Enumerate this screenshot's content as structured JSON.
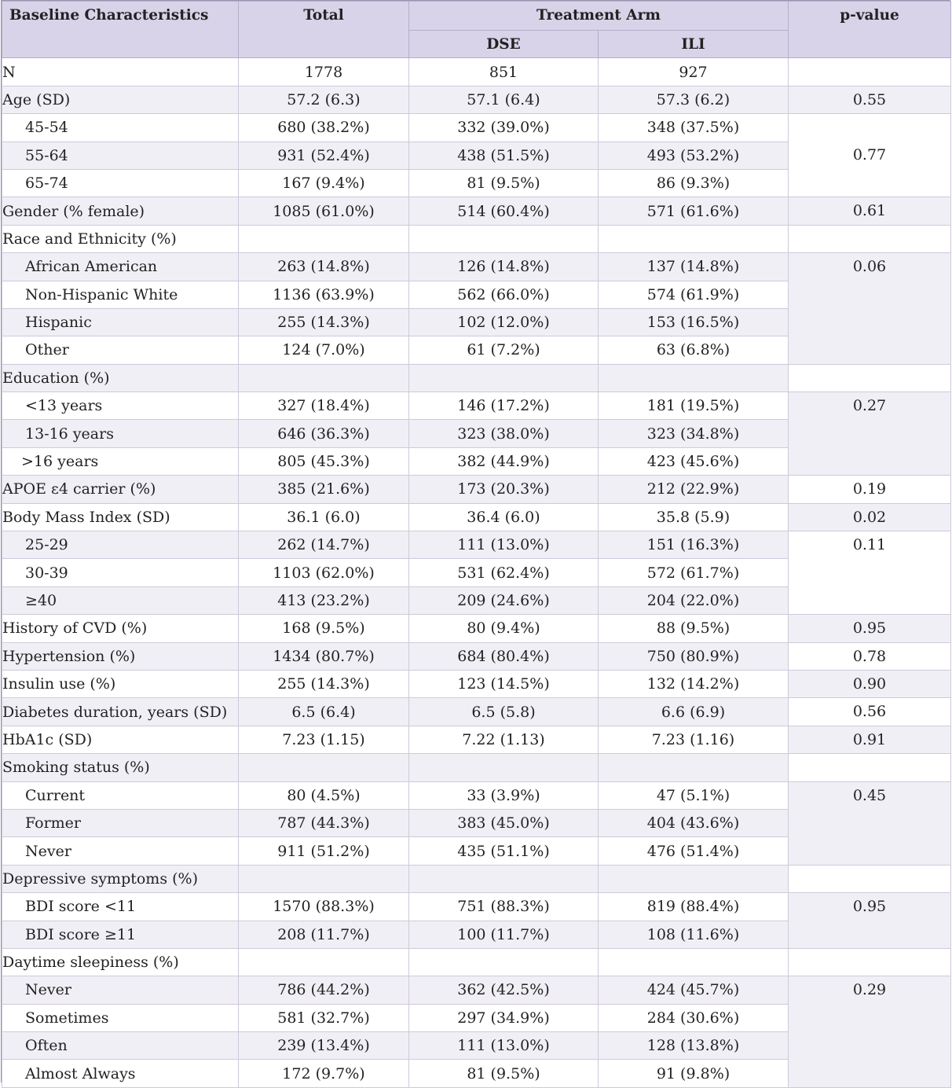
{
  "header": {
    "characteristics": "Baseline Characteristics",
    "total": "Total",
    "treatment_arm": "Treatment Arm",
    "dse": "DSE",
    "ili": "ILI",
    "pvalue": "p-value"
  },
  "rows": [
    {
      "label": "N",
      "total": "1778",
      "dse": "851",
      "ili": "927"
    },
    {
      "label": "Age (SD)",
      "total": "57.2 (6.3)",
      "dse": "57.1 (6.4)",
      "ili": "57.3 (6.2)",
      "p": "0.55"
    },
    {
      "label": "45-54",
      "total": "680 (38.2%)",
      "dse": "332 (39.0%)",
      "ili": "348 (37.5%)"
    },
    {
      "label": "55-64",
      "total": "931 (52.4%)",
      "dse": "438 (51.5%)",
      "ili": "493 (53.2%)",
      "p": "0.77"
    },
    {
      "label": "65-74",
      "total": "167 (9.4%)",
      "dse": "81 (9.5%)",
      "ili": "86 (9.3%)"
    },
    {
      "label": "Gender (% female)",
      "total": "1085 (61.0%)",
      "dse": "514 (60.4%)",
      "ili": "571 (61.6%)",
      "p": "0.61"
    },
    {
      "label": "Race and Ethnicity (%)"
    },
    {
      "label": "African American",
      "total": "263 (14.8%)",
      "dse": "126 (14.8%)",
      "ili": "137 (14.8%)",
      "p": "0.06"
    },
    {
      "label": "Non-Hispanic White",
      "total": "1136 (63.9%)",
      "dse": "562 (66.0%)",
      "ili": "574 (61.9%)"
    },
    {
      "label": "Hispanic",
      "total": "255 (14.3%)",
      "dse": "102 (12.0%)",
      "ili": "153 (16.5%)"
    },
    {
      "label": "Other",
      "total": "124 (7.0%)",
      "dse": "61 (7.2%)",
      "ili": "63 (6.8%)"
    },
    {
      "label": "Education (%)"
    },
    {
      "label": "<13 years",
      "total": "327 (18.4%)",
      "dse": "146 (17.2%)",
      "ili": "181 (19.5%)",
      "p": "0.27"
    },
    {
      "label": "13-16 years",
      "total": "646 (36.3%)",
      "dse": "323 (38.0%)",
      "ili": "323 (34.8%)"
    },
    {
      "label": ">16 years",
      "total": "805 (45.3%)",
      "dse": "382 (44.9%)",
      "ili": "423 (45.6%)"
    },
    {
      "label": "APOE ε4 carrier (%)",
      "total": "385 (21.6%)",
      "dse": "173 (20.3%)",
      "ili": "212 (22.9%)",
      "p": "0.19"
    },
    {
      "label": "Body Mass Index (SD)",
      "total": "36.1 (6.0)",
      "dse": "36.4 (6.0)",
      "ili": "35.8 (5.9)",
      "p": "0.02"
    },
    {
      "label": "25-29",
      "total": "262 (14.7%)",
      "dse": "111 (13.0%)",
      "ili": "151 (16.3%)",
      "p": "0.11"
    },
    {
      "label": "30-39",
      "total": "1103 (62.0%)",
      "dse": "531 (62.4%)",
      "ili": "572 (61.7%)"
    },
    {
      "label": "≥40",
      "total": "413 (23.2%)",
      "dse": "209 (24.6%)",
      "ili": "204 (22.0%)"
    },
    {
      "label": "History of CVD (%)",
      "total": "168 (9.5%)",
      "dse": "80 (9.4%)",
      "ili": "88 (9.5%)",
      "p": "0.95"
    },
    {
      "label": "Hypertension (%)",
      "total": "1434 (80.7%)",
      "dse": "684 (80.4%)",
      "ili": "750 (80.9%)",
      "p": "0.78"
    },
    {
      "label": "Insulin use (%)",
      "total": "255 (14.3%)",
      "dse": "123 (14.5%)",
      "ili": "132 (14.2%)",
      "p": "0.90"
    },
    {
      "label": "Diabetes duration, years (SD)",
      "total": "6.5 (6.4)",
      "dse": "6.5 (5.8)",
      "ili": "6.6 (6.9)",
      "p": "0.56"
    },
    {
      "label": "HbA1c (SD)",
      "total": "7.23 (1.15)",
      "dse": "7.22 (1.13)",
      "ili": "7.23 (1.16)",
      "p": "0.91"
    },
    {
      "label": "Smoking status (%)"
    },
    {
      "label": "Current",
      "total": "80 (4.5%)",
      "dse": "33 (3.9%)",
      "ili": "47 (5.1%)",
      "p": "0.45"
    },
    {
      "label": "Former",
      "total": "787 (44.3%)",
      "dse": "383 (45.0%)",
      "ili": "404 (43.6%)"
    },
    {
      "label": "Never",
      "total": "911 (51.2%)",
      "dse": "435 (51.1%)",
      "ili": "476 (51.4%)"
    },
    {
      "label": "Depressive symptoms (%)"
    },
    {
      "label": "BDI score <11",
      "total": "1570 (88.3%)",
      "dse": "751 (88.3%)",
      "ili": "819 (88.4%)",
      "p": "0.95"
    },
    {
      "label": "BDI score ≥11",
      "total": "208 (11.7%)",
      "dse": "100 (11.7%)",
      "ili": "108 (11.6%)"
    },
    {
      "label": "Daytime sleepiness (%)"
    },
    {
      "label": "Never",
      "total": "786 (44.2%)",
      "dse": "362 (42.5%)",
      "ili": "424 (45.7%)",
      "p": "0.29"
    },
    {
      "label": "Sometimes",
      "total": "581 (32.7%)",
      "dse": "297 (34.9%)",
      "ili": "284 (30.6%)"
    },
    {
      "label": "Often",
      "total": "239 (13.4%)",
      "dse": "111 (13.0%)",
      "ili": "128 (13.8%)"
    },
    {
      "label": "Almost Always",
      "total": "172 (9.7%)",
      "dse": "81 (9.5%)",
      "ili": "91 (9.8%)"
    }
  ]
}
